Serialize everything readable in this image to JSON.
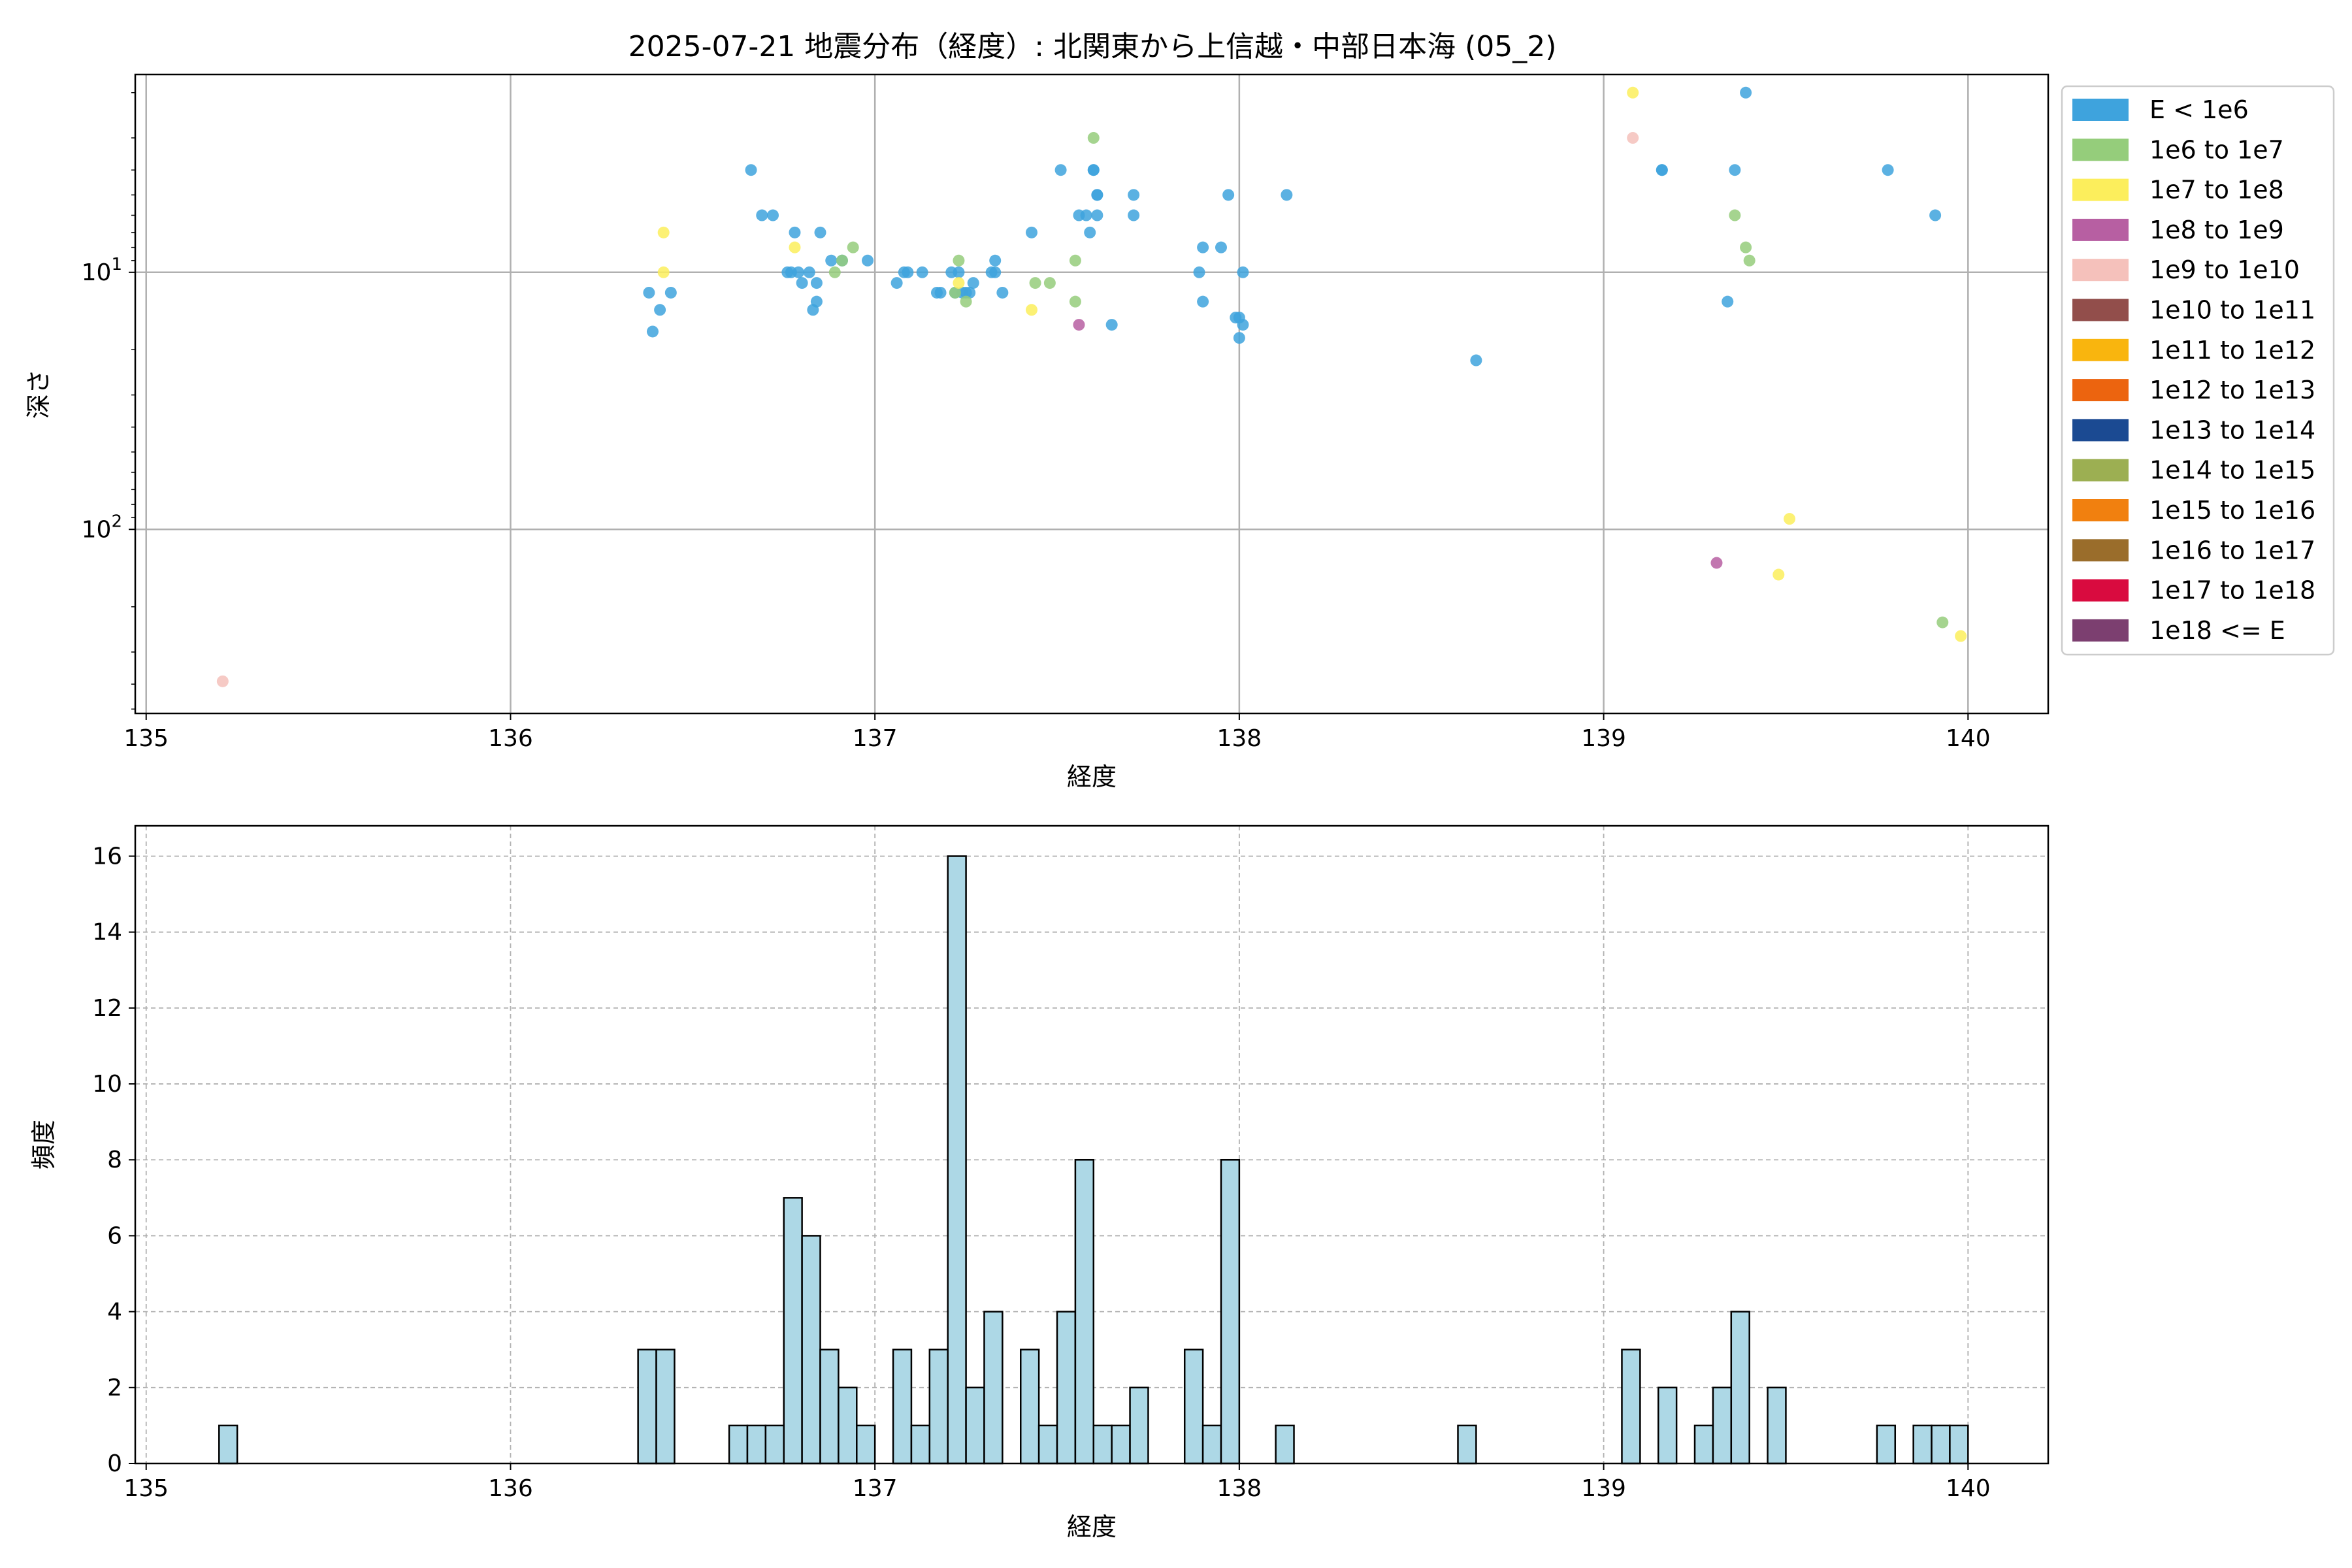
{
  "figure_title": "2025-07-21 地震分布（経度）: 北関東から上信越・中部日本海 (05_2)",
  "chart_data": [
    {
      "type": "scatter",
      "title": "2025-07-21 地震分布（経度）: 北関東から上信越・中部日本海 (05_2)",
      "xlabel": "経度",
      "ylabel": "深さ",
      "xlim": [
        134.97,
        140.22
      ],
      "ylim": [
        520,
        1.7
      ],
      "yscale": "log",
      "y_inverted": true,
      "grid": true,
      "x_ticks": [
        135,
        136,
        137,
        138,
        139,
        140
      ],
      "y_ticks": [
        {
          "value": 10,
          "base": "10",
          "exp": "1"
        },
        {
          "value": 100,
          "base": "10",
          "exp": "2"
        }
      ],
      "legend_position": "outside-right",
      "legend": [
        {
          "label": "E < 1e6",
          "color": "#3ea3dd"
        },
        {
          "label": "1e6 to 1e7",
          "color": "#95cd7b"
        },
        {
          "label": "1e7 to 1e8",
          "color": "#fcee5c"
        },
        {
          "label": "1e8 to 1e9",
          "color": "#b75fa2"
        },
        {
          "label": "1e9 to 1e10",
          "color": "#f5c1bb"
        },
        {
          "label": "1e10 to 1e11",
          "color": "#924e4b"
        },
        {
          "label": "1e11 to 1e12",
          "color": "#f9b50e"
        },
        {
          "label": "1e12 to 1e13",
          "color": "#ec640f"
        },
        {
          "label": "1e13 to 1e14",
          "color": "#1b4a92"
        },
        {
          "label": "1e14 to 1e15",
          "color": "#9caf52"
        },
        {
          "label": "1e15 to 1e16",
          "color": "#f1800f"
        },
        {
          "label": "1e16 to 1e17",
          "color": "#9a6d2b"
        },
        {
          "label": "1e17 to 1e18",
          "color": "#d90b3f"
        },
        {
          "label": "1e18 <= E",
          "color": "#7c3f70"
        }
      ],
      "series": [
        {
          "class": "E < 1e6",
          "color": "#3ea3dd",
          "points": [
            [
              136.38,
              12
            ],
            [
              136.39,
              17
            ],
            [
              136.41,
              14
            ],
            [
              136.44,
              12
            ],
            [
              136.66,
              4
            ],
            [
              136.69,
              6
            ],
            [
              136.72,
              6
            ],
            [
              136.76,
              10
            ],
            [
              136.77,
              10
            ],
            [
              136.78,
              7
            ],
            [
              136.79,
              10
            ],
            [
              136.8,
              11
            ],
            [
              136.82,
              10
            ],
            [
              136.83,
              14
            ],
            [
              136.84,
              11
            ],
            [
              136.84,
              13
            ],
            [
              136.85,
              7
            ],
            [
              136.88,
              9
            ],
            [
              136.91,
              9
            ],
            [
              136.98,
              9
            ],
            [
              137.06,
              11
            ],
            [
              137.08,
              10
            ],
            [
              137.09,
              10
            ],
            [
              137.13,
              10
            ],
            [
              137.17,
              12
            ],
            [
              137.18,
              12
            ],
            [
              137.21,
              10
            ],
            [
              137.22,
              12
            ],
            [
              137.23,
              10
            ],
            [
              137.24,
              12
            ],
            [
              137.25,
              12
            ],
            [
              137.26,
              12
            ],
            [
              137.27,
              11
            ],
            [
              137.32,
              10
            ],
            [
              137.33,
              10
            ],
            [
              137.33,
              9
            ],
            [
              137.35,
              12
            ],
            [
              137.43,
              7
            ],
            [
              137.51,
              4
            ],
            [
              137.56,
              6
            ],
            [
              137.58,
              6
            ],
            [
              137.59,
              7
            ],
            [
              137.6,
              4
            ],
            [
              137.6,
              4
            ],
            [
              137.61,
              5
            ],
            [
              137.61,
              5
            ],
            [
              137.61,
              6
            ],
            [
              137.65,
              16
            ],
            [
              137.71,
              5
            ],
            [
              137.71,
              6
            ],
            [
              137.89,
              10
            ],
            [
              137.9,
              8
            ],
            [
              137.9,
              13
            ],
            [
              137.95,
              8
            ],
            [
              137.97,
              5
            ],
            [
              137.99,
              15
            ],
            [
              138.0,
              18
            ],
            [
              138.0,
              15
            ],
            [
              138.01,
              10
            ],
            [
              138.01,
              16
            ],
            [
              138.13,
              5
            ],
            [
              138.65,
              22
            ],
            [
              139.16,
              4
            ],
            [
              139.16,
              4
            ],
            [
              139.34,
              13
            ],
            [
              139.36,
              4
            ],
            [
              139.39,
              2
            ],
            [
              139.78,
              4
            ],
            [
              139.91,
              6
            ]
          ]
        },
        {
          "class": "1e6 to 1e7",
          "color": "#95cd7b",
          "points": [
            [
              136.89,
              10
            ],
            [
              136.91,
              9
            ],
            [
              136.94,
              8
            ],
            [
              137.22,
              12
            ],
            [
              137.23,
              9
            ],
            [
              137.25,
              13
            ],
            [
              137.44,
              11
            ],
            [
              137.48,
              11
            ],
            [
              137.55,
              9
            ],
            [
              137.55,
              13
            ],
            [
              137.6,
              3
            ],
            [
              139.36,
              6
            ],
            [
              139.39,
              8
            ],
            [
              139.4,
              9
            ],
            [
              139.93,
              230
            ]
          ]
        },
        {
          "class": "1e7 to 1e8",
          "color": "#fcee5c",
          "points": [
            [
              136.42,
              10
            ],
            [
              136.42,
              7
            ],
            [
              136.78,
              8
            ],
            [
              137.23,
              11
            ],
            [
              137.43,
              14
            ],
            [
              139.08,
              2
            ],
            [
              139.48,
              150
            ],
            [
              139.51,
              91
            ],
            [
              139.98,
              260
            ]
          ]
        },
        {
          "class": "1e8 to 1e9",
          "color": "#b75fa2",
          "points": [
            [
              137.56,
              16
            ],
            [
              139.31,
              135
            ]
          ]
        },
        {
          "class": "1e9 to 1e10",
          "color": "#f5c1bb",
          "points": [
            [
              135.21,
              390
            ],
            [
              139.08,
              3
            ]
          ]
        }
      ]
    },
    {
      "type": "bar",
      "xlabel": "経度",
      "ylabel": "頻度",
      "xlim": [
        134.97,
        140.22
      ],
      "ylim": [
        0,
        16.8
      ],
      "grid": true,
      "x_ticks": [
        135,
        136,
        137,
        138,
        139,
        140
      ],
      "y_ticks": [
        0,
        2,
        4,
        6,
        8,
        10,
        12,
        14,
        16
      ],
      "bar_color": "#add8e6",
      "edge_color": "#000000",
      "bin_width": 0.05,
      "bins": [
        [
          135.2,
          1
        ],
        [
          136.35,
          3
        ],
        [
          136.4,
          3
        ],
        [
          136.6,
          1
        ],
        [
          136.65,
          1
        ],
        [
          136.7,
          1
        ],
        [
          136.75,
          7
        ],
        [
          136.8,
          6
        ],
        [
          136.85,
          3
        ],
        [
          136.9,
          2
        ],
        [
          136.95,
          1
        ],
        [
          137.05,
          3
        ],
        [
          137.1,
          1
        ],
        [
          137.15,
          3
        ],
        [
          137.2,
          16
        ],
        [
          137.25,
          2
        ],
        [
          137.3,
          4
        ],
        [
          137.4,
          3
        ],
        [
          137.45,
          1
        ],
        [
          137.5,
          4
        ],
        [
          137.55,
          8
        ],
        [
          137.6,
          1
        ],
        [
          137.65,
          1
        ],
        [
          137.7,
          2
        ],
        [
          137.85,
          3
        ],
        [
          137.9,
          1
        ],
        [
          137.95,
          8
        ],
        [
          138.1,
          1
        ],
        [
          138.6,
          1
        ],
        [
          139.05,
          3
        ],
        [
          139.15,
          2
        ],
        [
          139.25,
          1
        ],
        [
          139.3,
          2
        ],
        [
          139.35,
          4
        ],
        [
          139.45,
          2
        ],
        [
          139.75,
          1
        ],
        [
          139.85,
          1
        ],
        [
          139.9,
          1
        ],
        [
          139.95,
          1
        ]
      ]
    }
  ]
}
